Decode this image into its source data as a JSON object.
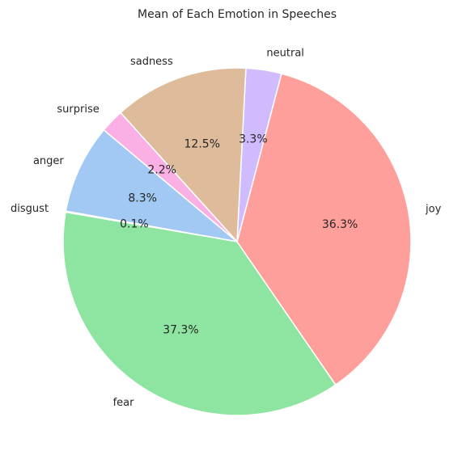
{
  "chart_data": {
    "type": "pie",
    "title": "Mean of Each Emotion in Speeches",
    "slices": [
      {
        "label": "anger",
        "value": 8.3,
        "pct_label": "8.3%",
        "color": "#a1c9f4"
      },
      {
        "label": "disgust",
        "value": 0.1,
        "pct_label": "0.1%",
        "color": "#ffb482"
      },
      {
        "label": "fear",
        "value": 37.3,
        "pct_label": "37.3%",
        "color": "#8de5a1"
      },
      {
        "label": "joy",
        "value": 36.3,
        "pct_label": "36.3%",
        "color": "#ff9f9b"
      },
      {
        "label": "neutral",
        "value": 3.3,
        "pct_label": "3.3%",
        "color": "#d0bbff"
      },
      {
        "label": "sadness",
        "value": 12.5,
        "pct_label": "12.5%",
        "color": "#debb9b"
      },
      {
        "label": "surprise",
        "value": 2.2,
        "pct_label": "2.2%",
        "color": "#fab0e4"
      }
    ],
    "start_angle_deg": 140,
    "direction": "counterclockwise"
  }
}
